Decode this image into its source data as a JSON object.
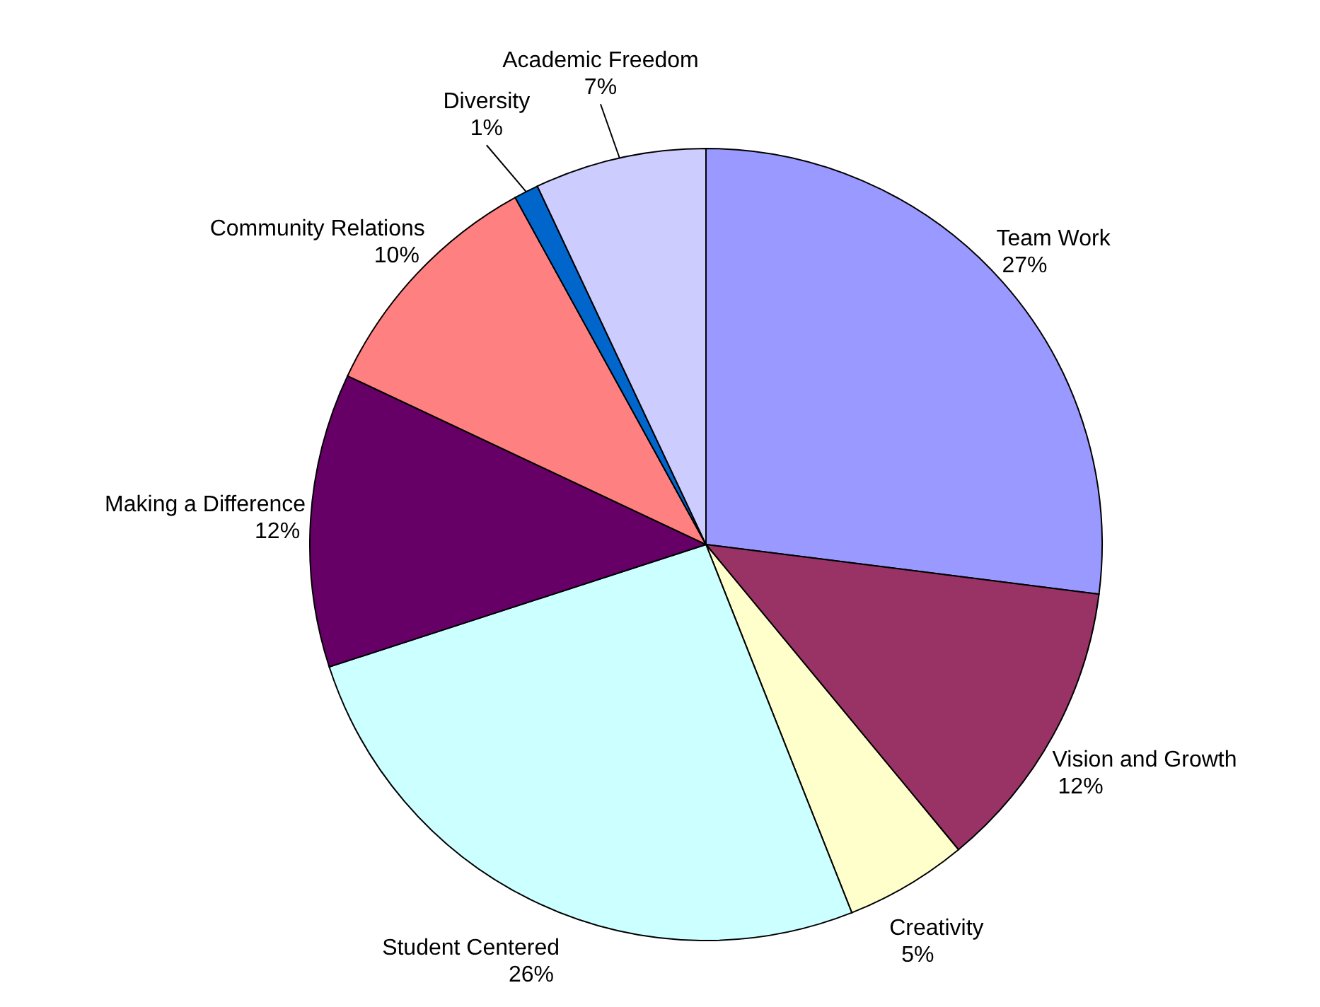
{
  "chart_data": {
    "type": "pie",
    "categories": [
      "Team Work",
      "Vision and Growth",
      "Creativity",
      "Student Centered",
      "Making a Difference",
      "Community Relations",
      "Diversity",
      "Academic Freedom"
    ],
    "values": [
      27,
      12,
      5,
      26,
      12,
      10,
      1,
      7
    ],
    "value_labels": [
      "27%",
      "12%",
      "5%",
      "26%",
      "12%",
      "10%",
      "1%",
      "7%"
    ],
    "colors": [
      "#9999ff",
      "#993366",
      "#ffffcc",
      "#ccffff",
      "#660066",
      "#ff8080",
      "#0066cc",
      "#ccccff"
    ]
  }
}
